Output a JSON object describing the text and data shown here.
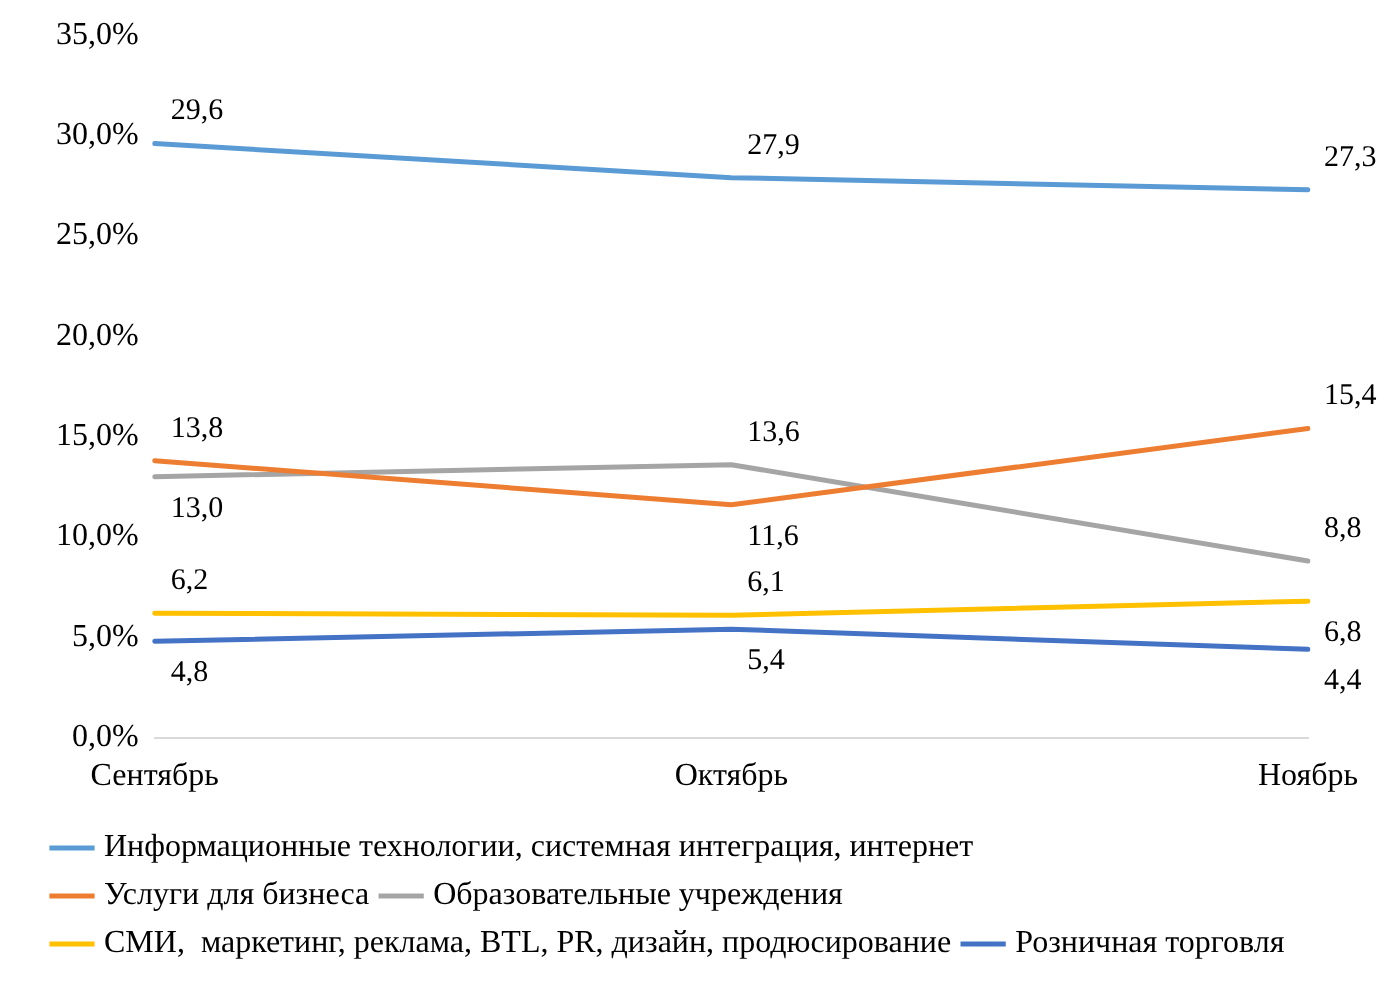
{
  "chart_data": {
    "type": "line",
    "categories": [
      "Сентябрь",
      "Октябрь",
      "Ноябрь"
    ],
    "series": [
      {
        "name": "Информационные технологии, системная интеграция, интернет",
        "color": "#5b9bd5",
        "values": [
          29.6,
          27.9,
          27.3
        ],
        "value_labels": [
          "29,6",
          "27,9",
          "27,3"
        ]
      },
      {
        "name": "Услуги для бизнеса",
        "color": "#ed7d31",
        "values": [
          13.8,
          11.6,
          15.4
        ],
        "value_labels": [
          "13,8",
          "11,6",
          "15,4"
        ]
      },
      {
        "name": "Образовательные учреждения",
        "color": "#a5a5a5",
        "values": [
          13.0,
          13.6,
          8.8
        ],
        "value_labels": [
          "13,0",
          "13,6",
          "8,8"
        ]
      },
      {
        "name": "СМИ,  маркетинг, реклама, BTL, PR, дизайн, продюсирование",
        "color": "#ffc000",
        "values": [
          6.2,
          6.1,
          6.8
        ],
        "value_labels": [
          "6,2",
          "6,1",
          "6,8"
        ]
      },
      {
        "name": "Розничная торговля",
        "color": "#4472c4",
        "values": [
          4.8,
          5.4,
          4.4
        ],
        "value_labels": [
          "4,8",
          "5,4",
          "4,4"
        ]
      }
    ],
    "ylim": [
      0,
      35
    ],
    "yticks": [
      {
        "value": 0,
        "label": "0,0%"
      },
      {
        "value": 5,
        "label": "5,0%"
      },
      {
        "value": 10,
        "label": "10,0%"
      },
      {
        "value": 15,
        "label": "15,0%"
      },
      {
        "value": 20,
        "label": "20,0%"
      },
      {
        "value": 25,
        "label": "25,0%"
      },
      {
        "value": 30,
        "label": "30,0%"
      },
      {
        "value": 35,
        "label": "35,0%"
      }
    ],
    "grid": false,
    "legend": "bottom",
    "marker": "none",
    "line_style": "solid"
  }
}
